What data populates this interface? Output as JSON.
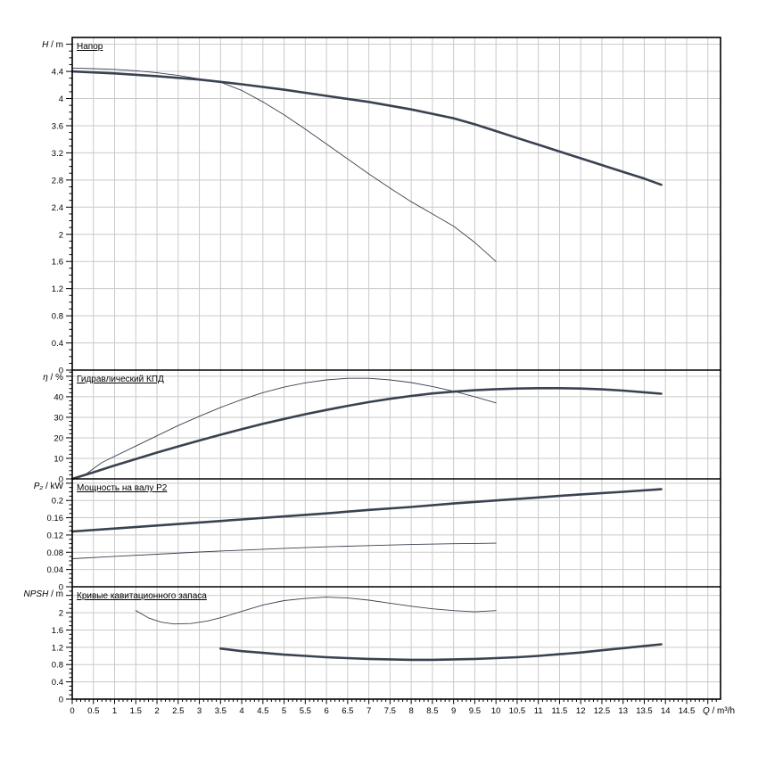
{
  "colors": {
    "curve": "#3a4251",
    "grid": "#c9c9c9",
    "border": "#000000",
    "background": "#ffffff",
    "text": "#000000"
  },
  "chart_data": {
    "type": "line",
    "description_note": "Four stacked pump performance panels sharing one flow axis",
    "x_axis": {
      "label_q": "Q",
      "label_unit": " / m³/h",
      "major_step": 0.5,
      "minor_step": 0.1,
      "tick_max": 15.2,
      "grid_max": 15,
      "labels": [
        "0",
        "0.5",
        "1",
        "1.5",
        "2",
        "2.5",
        "3",
        "3.5",
        "4",
        "4.5",
        "5",
        "5.5",
        "6",
        "6.5",
        "7",
        "7.5",
        "8",
        "8.5",
        "9",
        "9.5",
        "10",
        "10.5",
        "11",
        "11.5",
        "12",
        "12.5",
        "13",
        "13.5",
        "14",
        "14.5"
      ]
    },
    "panels": [
      {
        "id": "head",
        "title": "Напор",
        "ylabel_q": "H",
        "ylabel_unit": " / m",
        "ymax": 4.9,
        "y_major_step": 0.4,
        "y_minor_step": 0.1,
        "y_labels": [
          "0",
          "0.4",
          "0.8",
          "1.2",
          "1.6",
          "2",
          "2.4",
          "2.8",
          "3.2",
          "3.6",
          "4",
          "4.4"
        ],
        "series": [
          {
            "name": "head-main",
            "width": 2.6,
            "points": [
              [
                0,
                4.4
              ],
              [
                1,
                4.37
              ],
              [
                2,
                4.33
              ],
              [
                3,
                4.28
              ],
              [
                4,
                4.21
              ],
              [
                5,
                4.13
              ],
              [
                6,
                4.04
              ],
              [
                7,
                3.95
              ],
              [
                8,
                3.84
              ],
              [
                9,
                3.71
              ],
              [
                9.5,
                3.62
              ],
              [
                10,
                3.52
              ],
              [
                10.5,
                3.42
              ],
              [
                11,
                3.32
              ],
              [
                11.5,
                3.22
              ],
              [
                12,
                3.12
              ],
              [
                12.5,
                3.02
              ],
              [
                13,
                2.92
              ],
              [
                13.5,
                2.82
              ],
              [
                13.9,
                2.73
              ]
            ]
          },
          {
            "name": "head-alt",
            "width": 0.9,
            "points": [
              [
                0,
                4.45
              ],
              [
                0.5,
                4.44
              ],
              [
                1,
                4.43
              ],
              [
                1.5,
                4.41
              ],
              [
                2,
                4.38
              ],
              [
                2.5,
                4.34
              ],
              [
                3,
                4.29
              ],
              [
                3.5,
                4.24
              ],
              [
                4,
                4.12
              ],
              [
                4.5,
                3.95
              ],
              [
                5,
                3.76
              ],
              [
                5.5,
                3.55
              ],
              [
                6,
                3.33
              ],
              [
                6.5,
                3.11
              ],
              [
                7,
                2.89
              ],
              [
                7.5,
                2.68
              ],
              [
                8,
                2.48
              ],
              [
                8.5,
                2.3
              ],
              [
                9,
                2.12
              ],
              [
                9.5,
                1.88
              ],
              [
                10,
                1.6
              ]
            ]
          }
        ]
      },
      {
        "id": "efficiency",
        "title": "Гидравлический КПД",
        "ylabel_q": "η",
        "ylabel_unit": " / %",
        "ymax": 53,
        "y_major_step": 10,
        "y_minor_step": 2,
        "y_labels": [
          "0",
          "10",
          "20",
          "30",
          "40"
        ],
        "series": [
          {
            "name": "efficiency-main",
            "width": 2.6,
            "points": [
              [
                0,
                0
              ],
              [
                0.5,
                3.2
              ],
              [
                1,
                6.5
              ],
              [
                1.5,
                9.7
              ],
              [
                2,
                12.8
              ],
              [
                2.5,
                15.8
              ],
              [
                3,
                18.7
              ],
              [
                3.5,
                21.5
              ],
              [
                4,
                24.2
              ],
              [
                4.5,
                26.8
              ],
              [
                5,
                29.2
              ],
              [
                5.5,
                31.5
              ],
              [
                6,
                33.6
              ],
              [
                6.5,
                35.6
              ],
              [
                7,
                37.4
              ],
              [
                7.5,
                39
              ],
              [
                8,
                40.4
              ],
              [
                8.5,
                41.6
              ],
              [
                9,
                42.5
              ],
              [
                9.5,
                43.2
              ],
              [
                10,
                43.7
              ],
              [
                10.5,
                44
              ],
              [
                11,
                44.2
              ],
              [
                11.5,
                44.2
              ],
              [
                12,
                44
              ],
              [
                12.5,
                43.6
              ],
              [
                13,
                43
              ],
              [
                13.5,
                42.2
              ],
              [
                13.9,
                41.5
              ]
            ]
          },
          {
            "name": "efficiency-alt",
            "width": 0.9,
            "points": [
              [
                0.3,
                2
              ],
              [
                0.7,
                8
              ],
              [
                1,
                11
              ],
              [
                1.5,
                16
              ],
              [
                2,
                21
              ],
              [
                2.5,
                26
              ],
              [
                3,
                30.5
              ],
              [
                3.5,
                34.8
              ],
              [
                4,
                38.6
              ],
              [
                4.5,
                42
              ],
              [
                5,
                44.7
              ],
              [
                5.5,
                46.8
              ],
              [
                6,
                48.2
              ],
              [
                6.5,
                49
              ],
              [
                7,
                49
              ],
              [
                7.5,
                48.2
              ],
              [
                8,
                46.9
              ],
              [
                8.5,
                45
              ],
              [
                9,
                42.7
              ],
              [
                9.5,
                40
              ],
              [
                10,
                37
              ]
            ]
          }
        ]
      },
      {
        "id": "power",
        "title": "Мощность на валу P2",
        "ylabel_q": "P₂",
        "ylabel_unit": " / kW",
        "ymax": 0.25,
        "y_major_step": 0.04,
        "y_minor_step": 0.01,
        "y_labels": [
          "0",
          "0.04",
          "0.08",
          "0.12",
          "0.16",
          "0.2"
        ],
        "series": [
          {
            "name": "power-main",
            "width": 2.6,
            "points": [
              [
                0,
                0.128
              ],
              [
                1,
                0.135
              ],
              [
                2,
                0.142
              ],
              [
                3,
                0.149
              ],
              [
                4,
                0.156
              ],
              [
                5,
                0.163
              ],
              [
                6,
                0.17
              ],
              [
                7,
                0.178
              ],
              [
                8,
                0.185
              ],
              [
                9,
                0.193
              ],
              [
                10,
                0.2
              ],
              [
                11,
                0.207
              ],
              [
                12,
                0.214
              ],
              [
                13,
                0.22
              ],
              [
                13.9,
                0.226
              ]
            ]
          },
          {
            "name": "power-alt",
            "width": 0.9,
            "points": [
              [
                0,
                0.065
              ],
              [
                1,
                0.0705
              ],
              [
                2,
                0.0755
              ],
              [
                3,
                0.0805
              ],
              [
                4,
                0.085
              ],
              [
                5,
                0.089
              ],
              [
                6,
                0.0925
              ],
              [
                7,
                0.0955
              ],
              [
                8,
                0.098
              ],
              [
                9,
                0.0998
              ],
              [
                9.5,
                0.1005
              ],
              [
                10,
                0.101
              ]
            ]
          }
        ]
      },
      {
        "id": "npsh",
        "title": "Кривые кавитационного запаса",
        "ylabel_q": "NPSH",
        "ylabel_unit": " / m",
        "ymax": 2.6,
        "y_major_step": 0.4,
        "y_minor_step": 0.1,
        "y_labels": [
          "0",
          "0.4",
          "0.8",
          "1.2",
          "1.6",
          "2"
        ],
        "series": [
          {
            "name": "npsh-main",
            "width": 2.6,
            "points": [
              [
                3.5,
                1.17
              ],
              [
                4,
                1.11
              ],
              [
                4.5,
                1.07
              ],
              [
                5,
                1.03
              ],
              [
                5.5,
                1.0
              ],
              [
                6,
                0.97
              ],
              [
                6.5,
                0.95
              ],
              [
                7,
                0.93
              ],
              [
                7.5,
                0.92
              ],
              [
                8,
                0.91
              ],
              [
                8.5,
                0.91
              ],
              [
                9,
                0.92
              ],
              [
                9.5,
                0.93
              ],
              [
                10,
                0.95
              ],
              [
                10.5,
                0.97
              ],
              [
                11,
                1.0
              ],
              [
                11.5,
                1.04
              ],
              [
                12,
                1.08
              ],
              [
                12.5,
                1.13
              ],
              [
                13,
                1.18
              ],
              [
                13.5,
                1.23
              ],
              [
                13.9,
                1.27
              ]
            ]
          },
          {
            "name": "npsh-alt",
            "width": 0.9,
            "points": [
              [
                1.5,
                2.05
              ],
              [
                1.8,
                1.88
              ],
              [
                2.1,
                1.78
              ],
              [
                2.4,
                1.74
              ],
              [
                2.8,
                1.75
              ],
              [
                3.2,
                1.81
              ],
              [
                3.6,
                1.91
              ],
              [
                4,
                2.03
              ],
              [
                4.5,
                2.18
              ],
              [
                5,
                2.28
              ],
              [
                5.5,
                2.33
              ],
              [
                6,
                2.36
              ],
              [
                6.5,
                2.34
              ],
              [
                7,
                2.29
              ],
              [
                7.5,
                2.22
              ],
              [
                8,
                2.15
              ],
              [
                8.5,
                2.09
              ],
              [
                9,
                2.05
              ],
              [
                9.5,
                2.02
              ],
              [
                10,
                2.05
              ]
            ]
          }
        ]
      }
    ]
  }
}
